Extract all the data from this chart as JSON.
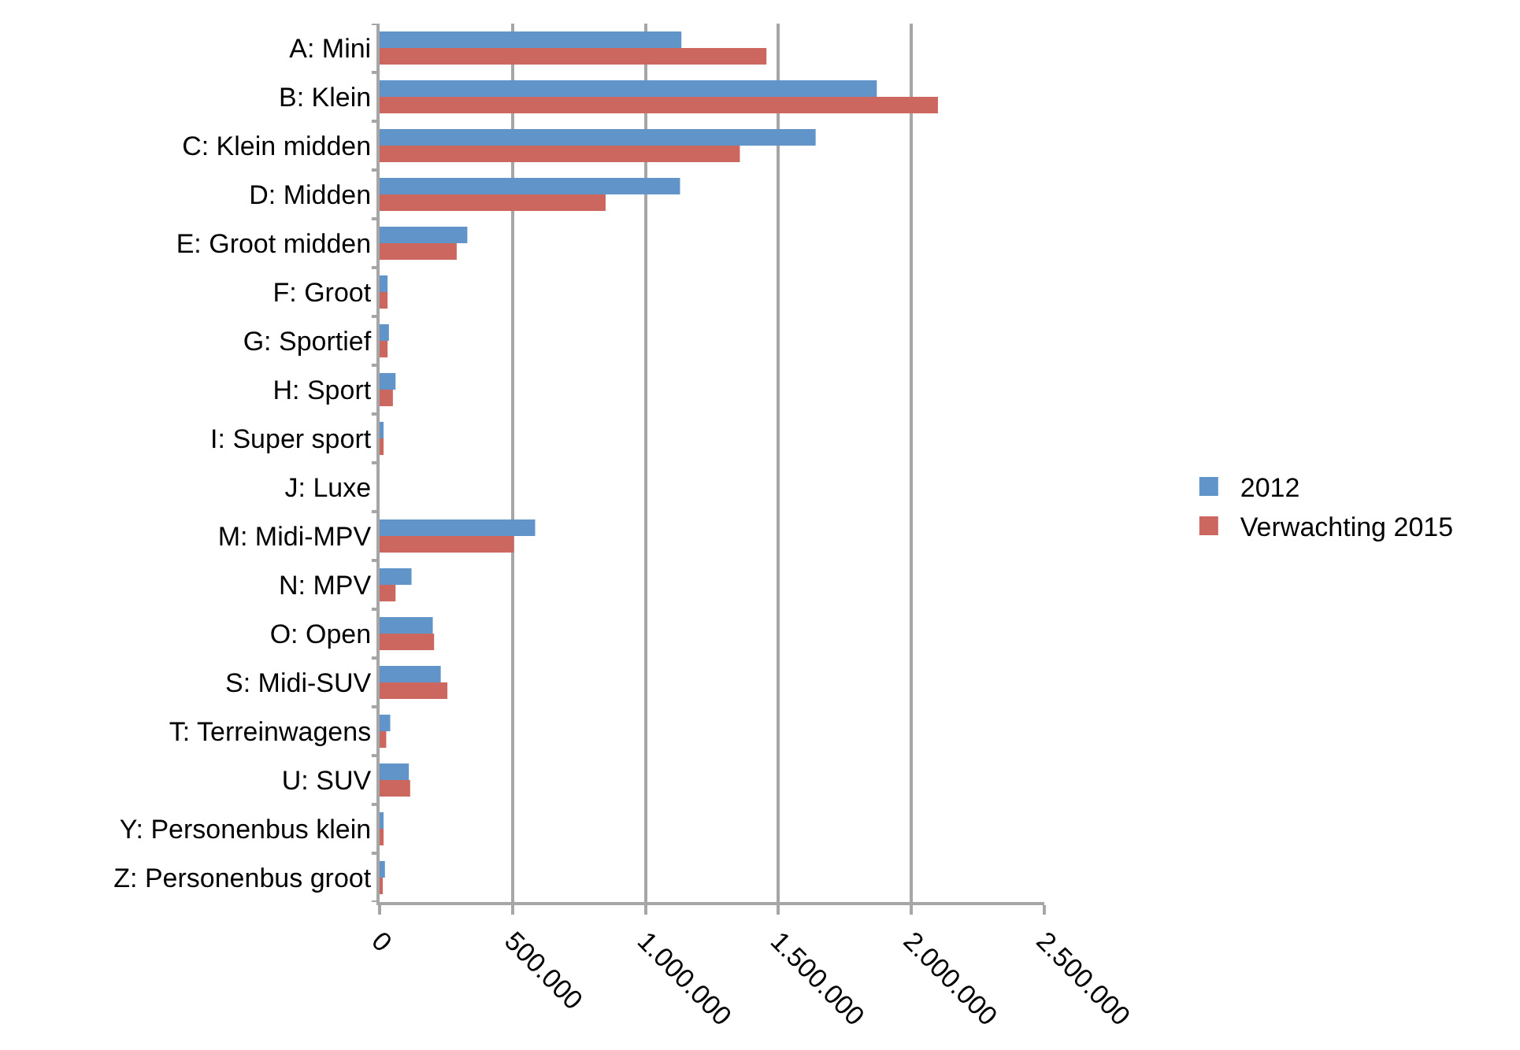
{
  "chart_data": {
    "type": "bar",
    "orientation": "horizontal",
    "categories": [
      "A: Mini",
      "B: Klein",
      "C: Klein midden",
      "D: Midden",
      "E: Groot midden",
      "F: Groot",
      "G: Sportief",
      "H: Sport",
      "I: Super sport",
      "J: Luxe",
      "M: Midi-MPV",
      "N: MPV",
      "O: Open",
      "S: Midi-SUV",
      "T: Terreinwagens",
      "U: SUV",
      "Y: Personenbus klein",
      "Z: Personenbus groot"
    ],
    "series": [
      {
        "name": "2012",
        "color": "#6194c9",
        "values": [
          1135000,
          1870000,
          1640000,
          1130000,
          330000,
          30000,
          35000,
          60000,
          15000,
          0,
          585000,
          120000,
          200000,
          230000,
          40000,
          110000,
          15000,
          20000
        ]
      },
      {
        "name": "Verwachting 2015",
        "color": "#cc6760",
        "values": [
          1455000,
          2100000,
          1355000,
          850000,
          290000,
          30000,
          30000,
          50000,
          15000,
          0,
          505000,
          60000,
          205000,
          255000,
          25000,
          115000,
          15000,
          10000
        ]
      }
    ],
    "xlim": [
      0,
      2500000
    ],
    "xticks": [
      0,
      {
        "value": 500000,
        "label": "500.000"
      },
      {
        "value": 1000000,
        "label": "1.000.000"
      },
      {
        "value": 1500000,
        "label": "1.500.000"
      },
      {
        "value": 2000000,
        "label": "2.000.000"
      },
      {
        "value": 2500000,
        "label": "2.500.000"
      }
    ],
    "grid": "x",
    "legend": "right"
  }
}
